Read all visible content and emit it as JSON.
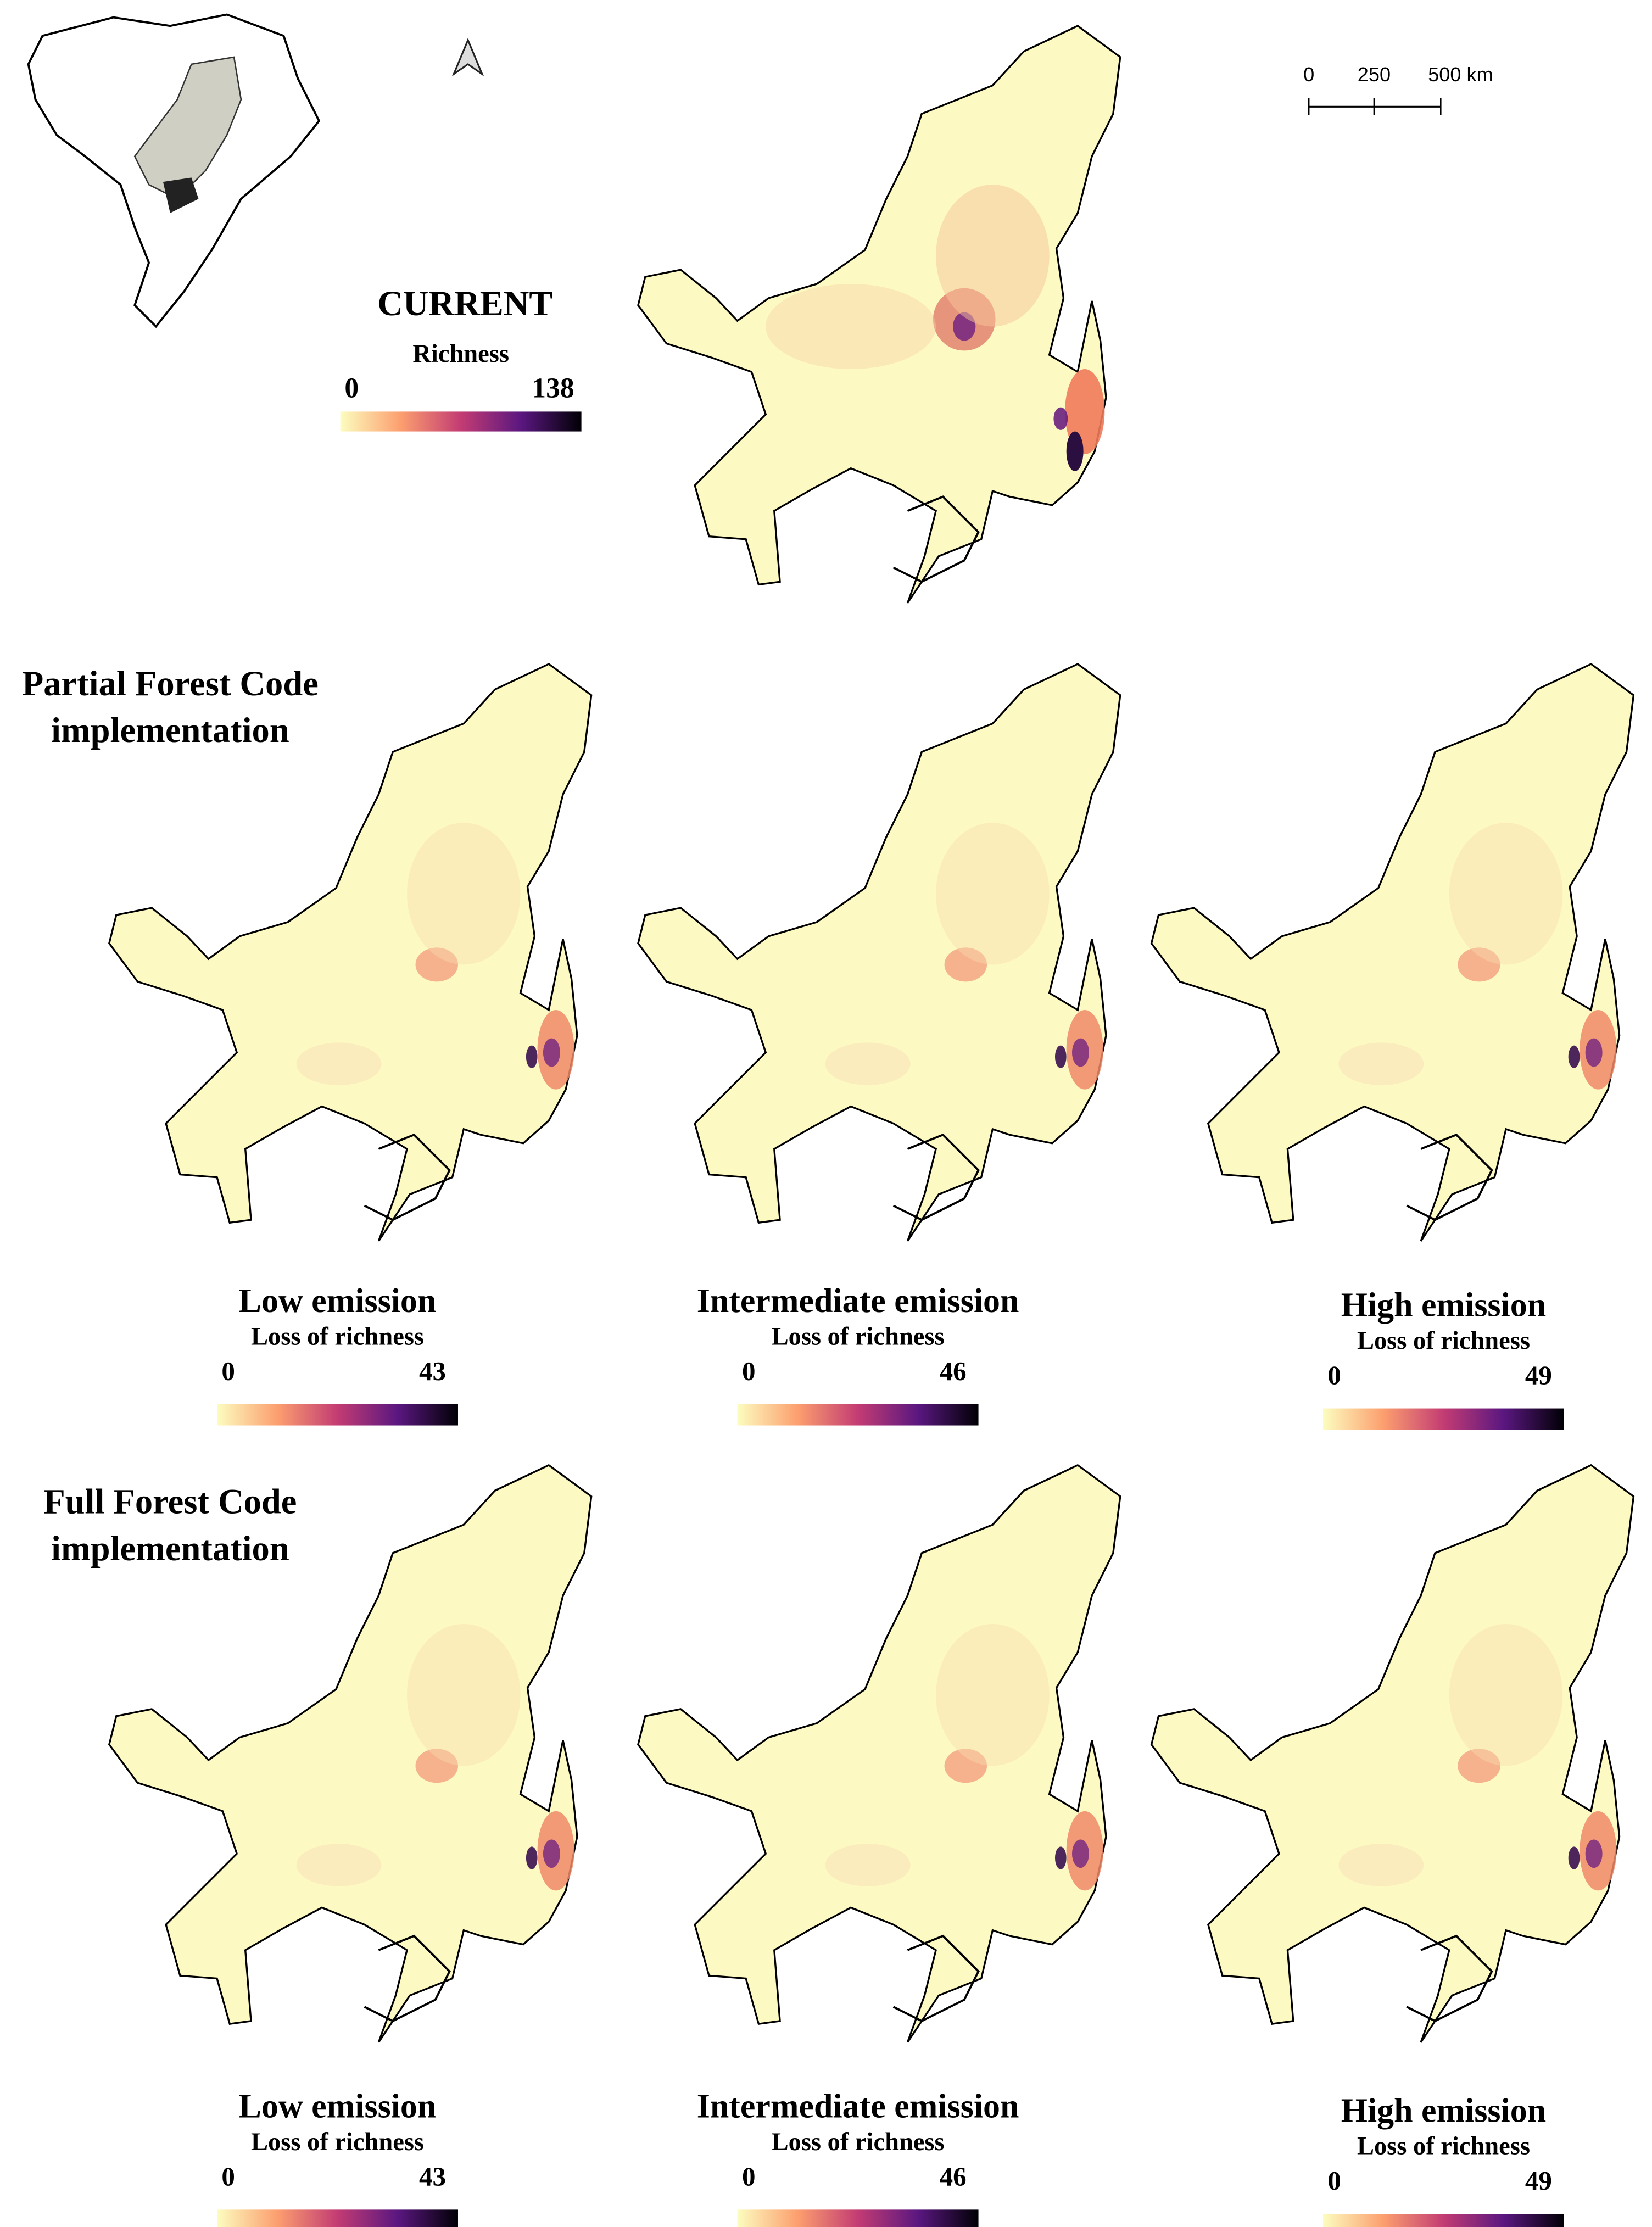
{
  "scale_bar": {
    "labels": [
      "0",
      "250",
      "500 km"
    ]
  },
  "current": {
    "title": "CURRENT",
    "legend_label": "Richness",
    "min": 0,
    "max": 138
  },
  "scenarios": [
    {
      "title_lines": [
        "Partial Forest Code",
        "implementation"
      ],
      "panels": [
        {
          "title": "Low emission",
          "legend_label": "Loss of richness",
          "min": 0,
          "max": 43
        },
        {
          "title": "Intermediate emission",
          "legend_label": "Loss of richness",
          "min": 0,
          "max": 46
        },
        {
          "title": "High emission",
          "legend_label": "Loss of richness",
          "min": 0,
          "max": 49
        }
      ]
    },
    {
      "title_lines": [
        "Full Forest Code",
        "implementation"
      ],
      "panels": [
        {
          "title": "Low emission",
          "legend_label": "Loss of richness",
          "min": 0,
          "max": 43
        },
        {
          "title": "Intermediate emission",
          "legend_label": "Loss of richness",
          "min": 0,
          "max": 46
        },
        {
          "title": "High emission",
          "legend_label": "Loss of richness",
          "min": 0,
          "max": 49
        }
      ]
    }
  ]
}
